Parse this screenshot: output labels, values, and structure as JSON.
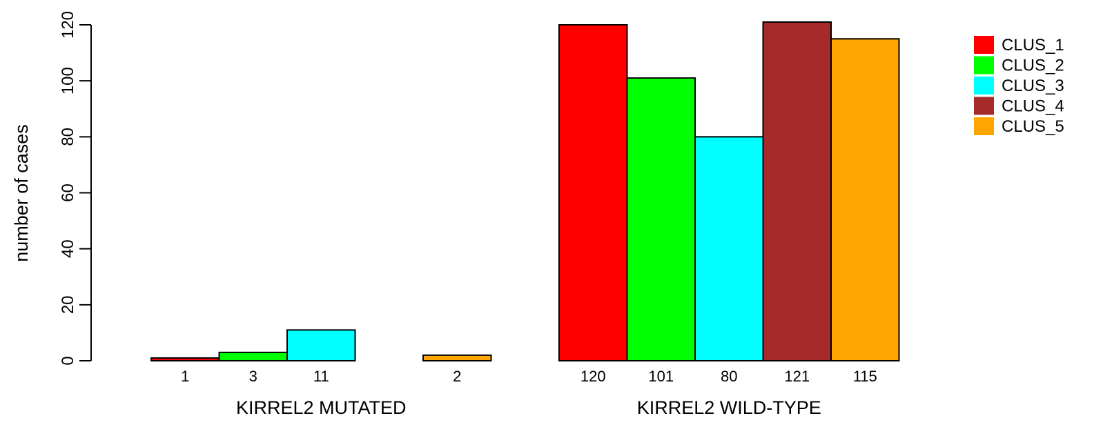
{
  "chart_data": {
    "type": "bar",
    "ylabel": "number of cases",
    "ylim": [
      0,
      120
    ],
    "yticks": [
      0,
      20,
      40,
      60,
      80,
      100,
      120
    ],
    "groups": [
      {
        "label": "KIRREL2 MUTATED",
        "values": [
          1,
          3,
          11,
          0,
          2
        ],
        "count_labels": [
          "1",
          "3",
          "11",
          "",
          "2"
        ]
      },
      {
        "label": "KIRREL2 WILD-TYPE",
        "values": [
          120,
          101,
          80,
          121,
          115
        ],
        "count_labels": [
          "120",
          "101",
          "80",
          "121",
          "115"
        ]
      }
    ],
    "series": [
      {
        "name": "CLUS_1",
        "color": "#ff0000"
      },
      {
        "name": "CLUS_2",
        "color": "#00ff00"
      },
      {
        "name": "CLUS_3",
        "color": "#00ffff"
      },
      {
        "name": "CLUS_4",
        "color": "#a52a2a"
      },
      {
        "name": "CLUS_5",
        "color": "#ffa500"
      }
    ],
    "legend_position": "top-right",
    "grid": false
  }
}
